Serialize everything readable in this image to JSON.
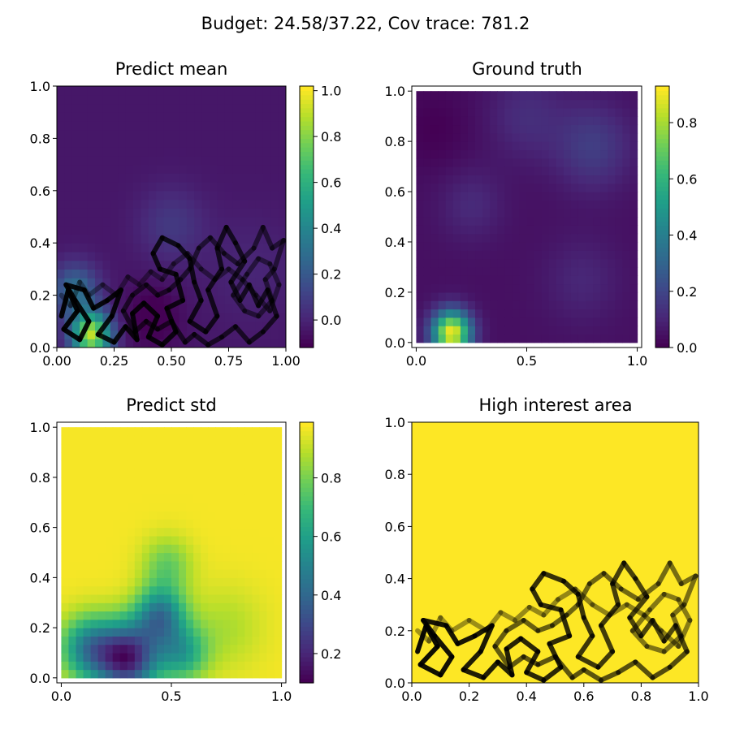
{
  "figure": {
    "suptitle": "Budget: 24.58/37.22,  Cov trace: 781.2"
  },
  "colormap": {
    "name": "viridis",
    "stops": [
      "#440154",
      "#482878",
      "#3e4989",
      "#31688e",
      "#26828e",
      "#1f9e89",
      "#35b779",
      "#6ece58",
      "#b5de2b",
      "#fde725"
    ]
  },
  "path_color": "#000000",
  "chart_data": [
    {
      "type": "heatmap",
      "title": "Predict mean",
      "xlim": [
        0,
        1
      ],
      "ylim": [
        0,
        1
      ],
      "xticks": [
        "0.00",
        "0.25",
        "0.50",
        "0.75",
        "1.00"
      ],
      "xtick_values": [
        0,
        0.25,
        0.5,
        0.75,
        1.0
      ],
      "yticks": [
        "0.0",
        "0.2",
        "0.4",
        "0.6",
        "0.8",
        "1.0"
      ],
      "ytick_values": [
        0,
        0.2,
        0.4,
        0.6,
        0.8,
        1.0
      ],
      "colorbar": {
        "min": -0.12,
        "max": 1.02,
        "ticks": [
          "0.0",
          "0.2",
          "0.4",
          "0.6",
          "0.8",
          "1.0"
        ],
        "tick_values": [
          0,
          0.2,
          0.4,
          0.6,
          0.8,
          1.0
        ]
      },
      "field": {
        "base": -0.05,
        "bumps": [
          {
            "x": 0.15,
            "y": 0.05,
            "amp": 0.95,
            "sigma": 0.06
          },
          {
            "x": 0.08,
            "y": 0.22,
            "amp": 0.35,
            "sigma": 0.07
          },
          {
            "x": 0.5,
            "y": 0.47,
            "amp": 0.12,
            "sigma": 0.1
          },
          {
            "x": 0.42,
            "y": 0.12,
            "amp": -0.1,
            "sigma": 0.08
          },
          {
            "x": 0.85,
            "y": 0.3,
            "amp": 0.05,
            "sigma": 0.15
          }
        ]
      },
      "grid_n": 30,
      "show_path": true
    },
    {
      "type": "heatmap",
      "title": "Ground truth",
      "xlim": [
        -0.02,
        1.02
      ],
      "ylim": [
        -0.02,
        1.02
      ],
      "xticks": [
        "0.0",
        "0.5",
        "1.0"
      ],
      "xtick_values": [
        0,
        0.5,
        1.0
      ],
      "yticks": [
        "0.0",
        "0.2",
        "0.4",
        "0.6",
        "0.8",
        "1.0"
      ],
      "ytick_values": [
        0,
        0.2,
        0.4,
        0.6,
        0.8,
        1.0
      ],
      "colorbar": {
        "min": 0.0,
        "max": 0.93,
        "ticks": [
          "0.0",
          "0.2",
          "0.4",
          "0.6",
          "0.8"
        ],
        "tick_values": [
          0,
          0.2,
          0.4,
          0.6,
          0.8
        ]
      },
      "field": {
        "base": 0.04,
        "bumps": [
          {
            "x": 0.16,
            "y": 0.04,
            "amp": 0.88,
            "sigma": 0.06
          },
          {
            "x": 0.8,
            "y": 0.78,
            "amp": 0.13,
            "sigma": 0.12
          },
          {
            "x": 0.5,
            "y": 0.9,
            "amp": 0.08,
            "sigma": 0.12
          },
          {
            "x": 0.25,
            "y": 0.55,
            "amp": 0.07,
            "sigma": 0.1
          },
          {
            "x": 0.75,
            "y": 0.25,
            "amp": 0.06,
            "sigma": 0.12
          },
          {
            "x": 0.08,
            "y": 0.85,
            "amp": -0.04,
            "sigma": 0.12
          }
        ]
      },
      "grid_n": 30,
      "show_path": false
    },
    {
      "type": "heatmap",
      "title": "Predict std",
      "xlim": [
        -0.02,
        1.02
      ],
      "ylim": [
        -0.02,
        1.02
      ],
      "xticks": [
        "0.0",
        "0.5",
        "1.0"
      ],
      "xtick_values": [
        0,
        0.5,
        1.0
      ],
      "yticks": [
        "0.0",
        "0.2",
        "0.4",
        "0.6",
        "0.8",
        "1.0"
      ],
      "ytick_values": [
        0,
        0.2,
        0.4,
        0.6,
        0.8,
        1.0
      ],
      "colorbar": {
        "min": 0.1,
        "max": 0.99,
        "ticks": [
          "0.2",
          "0.4",
          "0.6",
          "0.8"
        ],
        "tick_values": [
          0.2,
          0.4,
          0.6,
          0.8
        ]
      },
      "field": {
        "base": 0.98,
        "bumps": [
          {
            "x": 0.3,
            "y": 0.08,
            "amp": -0.8,
            "sigma": 0.1
          },
          {
            "x": 0.45,
            "y": 0.25,
            "amp": -0.5,
            "sigma": 0.08
          },
          {
            "x": 0.12,
            "y": 0.12,
            "amp": -0.45,
            "sigma": 0.09
          },
          {
            "x": 0.55,
            "y": 0.1,
            "amp": -0.35,
            "sigma": 0.08
          },
          {
            "x": 0.48,
            "y": 0.45,
            "amp": -0.2,
            "sigma": 0.08
          },
          {
            "x": 0.75,
            "y": 0.2,
            "amp": -0.1,
            "sigma": 0.12
          }
        ]
      },
      "grid_n": 30,
      "show_path": false
    },
    {
      "type": "heatmap",
      "title": "High interest area",
      "xlim": [
        0,
        1
      ],
      "ylim": [
        0,
        1
      ],
      "xticks": [
        "0.0",
        "0.2",
        "0.4",
        "0.6",
        "0.8",
        "1.0"
      ],
      "xtick_values": [
        0,
        0.2,
        0.4,
        0.6,
        0.8,
        1.0
      ],
      "yticks": [
        "0.0",
        "0.2",
        "0.4",
        "0.6",
        "0.8",
        "1.0"
      ],
      "ytick_values": [
        0,
        0.2,
        0.4,
        0.6,
        0.8,
        1.0
      ],
      "fill_color": "#fde725",
      "show_path": true
    }
  ],
  "path": [
    [
      0.02,
      0.12
    ],
    [
      0.05,
      0.22
    ],
    [
      0.09,
      0.14
    ],
    [
      0.03,
      0.07
    ],
    [
      0.1,
      0.03
    ],
    [
      0.14,
      0.1
    ],
    [
      0.08,
      0.18
    ],
    [
      0.04,
      0.24
    ],
    [
      0.12,
      0.22
    ],
    [
      0.16,
      0.15
    ],
    [
      0.22,
      0.18
    ],
    [
      0.28,
      0.22
    ],
    [
      0.24,
      0.12
    ],
    [
      0.18,
      0.05
    ],
    [
      0.25,
      0.02
    ],
    [
      0.3,
      0.08
    ],
    [
      0.35,
      0.03
    ],
    [
      0.33,
      0.13
    ],
    [
      0.38,
      0.17
    ],
    [
      0.44,
      0.12
    ],
    [
      0.4,
      0.04
    ],
    [
      0.46,
      0.01
    ],
    [
      0.52,
      0.06
    ],
    [
      0.48,
      0.15
    ],
    [
      0.55,
      0.18
    ],
    [
      0.52,
      0.28
    ],
    [
      0.45,
      0.3
    ],
    [
      0.42,
      0.36
    ],
    [
      0.46,
      0.42
    ],
    [
      0.53,
      0.39
    ],
    [
      0.58,
      0.34
    ],
    [
      0.6,
      0.25
    ],
    [
      0.63,
      0.18
    ],
    [
      0.58,
      0.1
    ],
    [
      0.65,
      0.06
    ],
    [
      0.7,
      0.12
    ],
    [
      0.66,
      0.22
    ],
    [
      0.72,
      0.3
    ],
    [
      0.7,
      0.38
    ],
    [
      0.74,
      0.46
    ],
    [
      0.78,
      0.4
    ],
    [
      0.82,
      0.33
    ],
    [
      0.76,
      0.25
    ],
    [
      0.8,
      0.18
    ],
    [
      0.84,
      0.24
    ],
    [
      0.88,
      0.16
    ],
    [
      0.92,
      0.22
    ],
    [
      0.96,
      0.12
    ],
    [
      0.9,
      0.06
    ],
    [
      0.84,
      0.02
    ],
    [
      0.78,
      0.08
    ],
    [
      0.72,
      0.04
    ],
    [
      0.66,
      0.01
    ],
    [
      0.6,
      0.05
    ],
    [
      0.56,
      0.02
    ],
    [
      0.5,
      0.1
    ],
    [
      0.44,
      0.07
    ],
    [
      0.39,
      0.1
    ],
    [
      0.34,
      0.06
    ],
    [
      0.29,
      0.14
    ],
    [
      0.33,
      0.2
    ],
    [
      0.39,
      0.24
    ],
    [
      0.44,
      0.2
    ],
    [
      0.49,
      0.22
    ],
    [
      0.54,
      0.26
    ],
    [
      0.58,
      0.3
    ],
    [
      0.62,
      0.38
    ],
    [
      0.67,
      0.42
    ],
    [
      0.73,
      0.36
    ],
    [
      0.79,
      0.32
    ],
    [
      0.86,
      0.38
    ],
    [
      0.9,
      0.46
    ],
    [
      0.94,
      0.38
    ],
    [
      0.99,
      0.41
    ],
    [
      0.95,
      0.3
    ],
    [
      0.91,
      0.26
    ],
    [
      0.94,
      0.18
    ],
    [
      0.88,
      0.12
    ],
    [
      0.82,
      0.14
    ],
    [
      0.77,
      0.2
    ],
    [
      0.83,
      0.28
    ],
    [
      0.88,
      0.34
    ],
    [
      0.93,
      0.32
    ],
    [
      0.97,
      0.24
    ],
    [
      0.93,
      0.14
    ],
    [
      0.87,
      0.2
    ],
    [
      0.81,
      0.26
    ],
    [
      0.75,
      0.3
    ],
    [
      0.69,
      0.26
    ],
    [
      0.63,
      0.3
    ],
    [
      0.57,
      0.36
    ],
    [
      0.51,
      0.32
    ],
    [
      0.46,
      0.26
    ],
    [
      0.41,
      0.29
    ],
    [
      0.36,
      0.24
    ],
    [
      0.31,
      0.27
    ],
    [
      0.26,
      0.2
    ],
    [
      0.2,
      0.24
    ],
    [
      0.14,
      0.2
    ],
    [
      0.1,
      0.25
    ],
    [
      0.06,
      0.16
    ],
    [
      0.02,
      0.2
    ]
  ]
}
